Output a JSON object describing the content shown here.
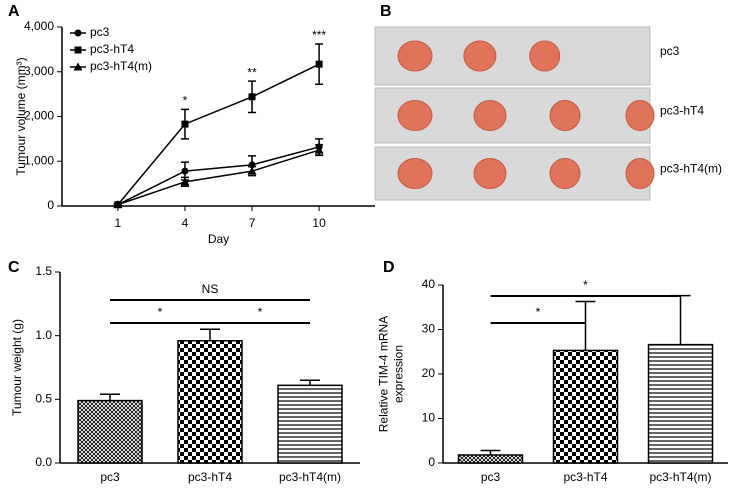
{
  "chart_data": [
    {
      "type": "line",
      "panel": "A",
      "ylabel": [
        "Tumour volume (mm³)"
      ],
      "xlabel": "Day",
      "xlim": [
        -1.5,
        12.5
      ],
      "xticks": [
        1,
        4,
        7,
        10
      ],
      "ylim": [
        0,
        4000
      ],
      "yticks": [
        0,
        {
          "value": 1000,
          "label": "1,000"
        },
        {
          "value": 2000,
          "label": "2,000"
        },
        {
          "value": 3000,
          "label": "3,000"
        },
        {
          "value": 4000,
          "label": "4,000"
        }
      ],
      "x": [
        1,
        4,
        7,
        10
      ],
      "series": [
        {
          "name": "pc3",
          "color": "#000000",
          "marker": "circle",
          "values": [
            30,
            780,
            920,
            1320
          ],
          "errors": [
            20,
            200,
            200,
            180
          ]
        },
        {
          "name": "pc3-hT4",
          "color": "#000000",
          "marker": "square",
          "values": [
            30,
            1830,
            2440,
            3170
          ],
          "errors": [
            20,
            330,
            350,
            450
          ]
        },
        {
          "name": "pc3-hT4(m)",
          "color": "#000000",
          "marker": "triangle",
          "values": [
            30,
            540,
            780,
            1250
          ],
          "errors": [
            20,
            100,
            100,
            120
          ]
        }
      ],
      "annotations": [
        {
          "x": 4,
          "text": "*"
        },
        {
          "x": 7,
          "text": "**"
        },
        {
          "x": 10,
          "text": "***"
        }
      ]
    },
    {
      "type": "bar",
      "panel": "C",
      "ylabel": [
        "Tumour weight (g)"
      ],
      "categories": [
        "pc3",
        "pc3-hT4",
        "pc3-hT4(m)"
      ],
      "values": [
        0.49,
        0.96,
        0.61
      ],
      "errors": [
        0.05,
        0.09,
        0.04
      ],
      "patterns": [
        "crosshatch",
        "checker",
        "hlines"
      ],
      "ylim": [
        0,
        1.5
      ],
      "yticks": [
        {
          "value": 0,
          "label": "0.0"
        },
        {
          "value": 0.5,
          "label": "0.5"
        },
        {
          "value": 1,
          "label": "1.0"
        },
        {
          "value": 1.5,
          "label": "1.5"
        }
      ],
      "brackets": [
        {
          "label": "NS",
          "span": [
            "pc3",
            "pc3-hT4(m)"
          ]
        },
        {
          "label": "*",
          "span": [
            "pc3",
            "pc3-hT4"
          ]
        },
        {
          "label": "*",
          "span": [
            "pc3-hT4",
            "pc3-hT4(m)"
          ]
        }
      ]
    },
    {
      "type": "bar",
      "panel": "D",
      "ylabel": [
        "Relative TIM-4 mRNA",
        "expression"
      ],
      "categories": [
        "pc3",
        "pc3-hT4",
        "pc3-hT4(m)"
      ],
      "values": [
        1.8,
        25.3,
        26.6
      ],
      "errors": [
        1.0,
        11,
        11
      ],
      "patterns": [
        "crosshatch",
        "checker",
        "hlines"
      ],
      "ylim": [
        0,
        40
      ],
      "yticks": [
        0,
        10,
        20,
        30,
        40
      ],
      "brackets": [
        {
          "label": "*",
          "span": [
            "pc3",
            "pc3-hT4(m)"
          ]
        },
        {
          "label": "*",
          "span": [
            "pc3",
            "pc3-hT4"
          ]
        }
      ]
    }
  ],
  "photo_panel": {
    "panel": "B",
    "rows": [
      "pc3",
      "pc3-hT4",
      "pc3-hT4(m)"
    ]
  }
}
